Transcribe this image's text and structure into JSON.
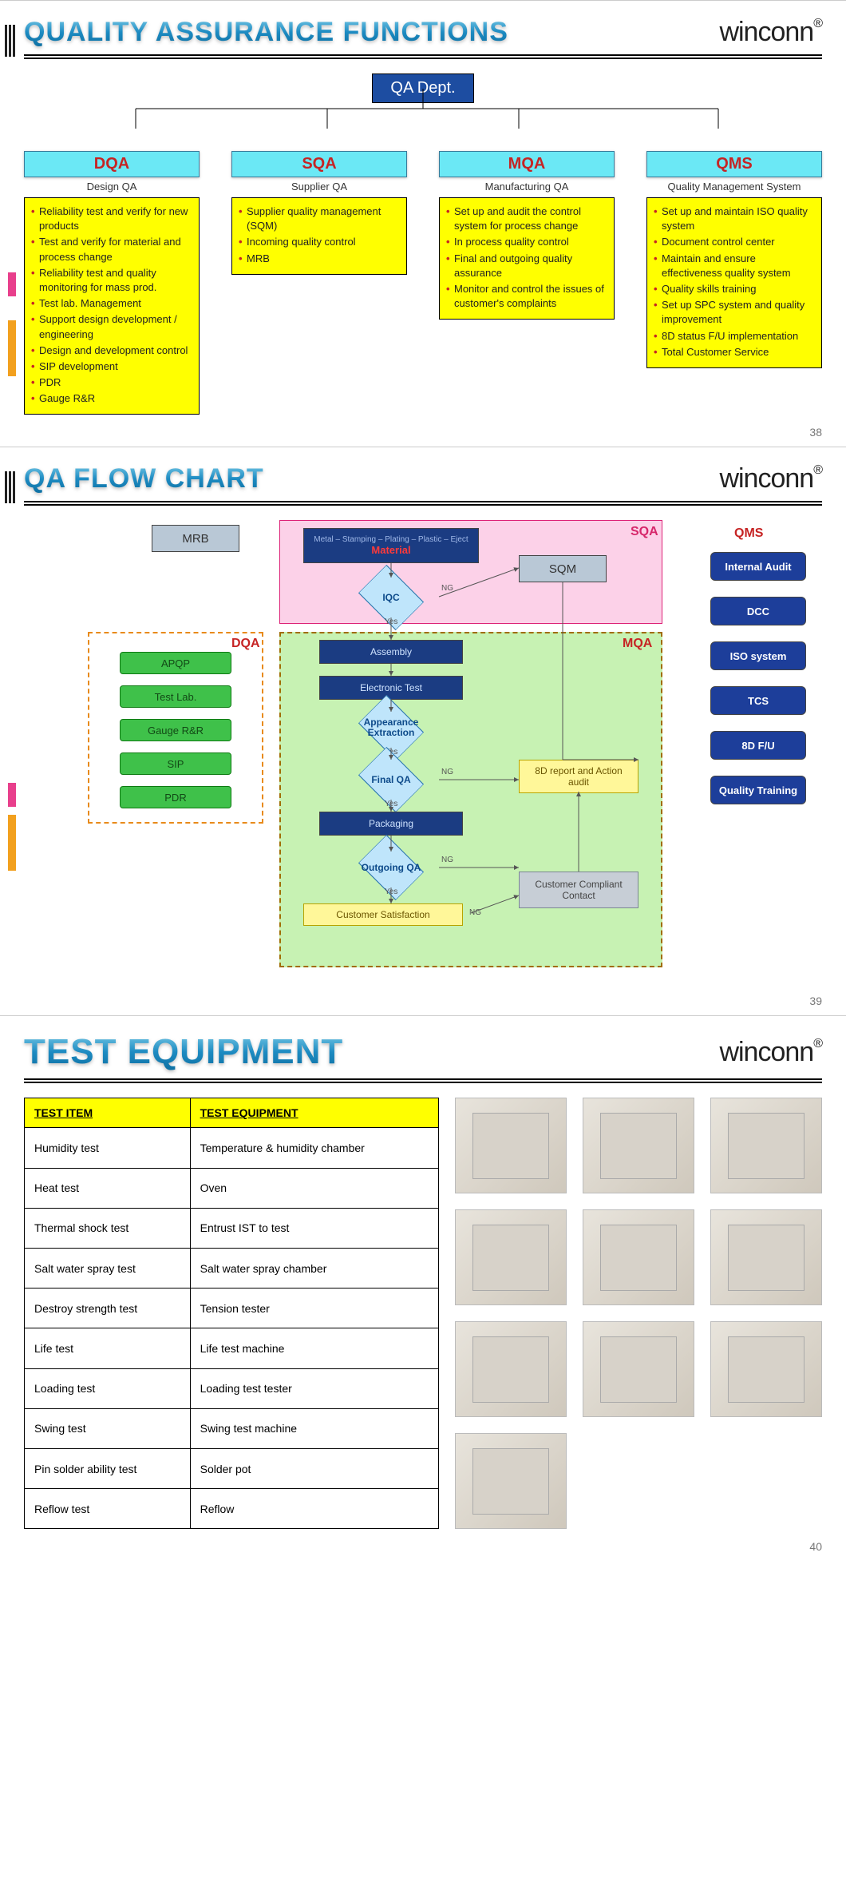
{
  "brand": "winconn",
  "slides": {
    "qa_functions": {
      "title": "QUALITY ASSURANCE FUNCTIONS",
      "page": "38",
      "root": "QA Dept.",
      "colors": {
        "root_bg": "#1d4da1",
        "head_bg": "#6be8f5",
        "head_text": "#c62424",
        "box_bg": "#ffff00",
        "bullet": "#c62424"
      },
      "branches": [
        {
          "code": "DQA",
          "sub": "Design QA",
          "items": [
            "Reliability test and verify for new products",
            "Test and verify for material and process change",
            "Reliability test and quality monitoring for mass prod.",
            "Test lab. Management",
            "Support design development / engineering",
            "Design and development control",
            "SIP development",
            "PDR",
            "Gauge R&R"
          ]
        },
        {
          "code": "SQA",
          "sub": "Supplier QA",
          "items": [
            "Supplier quality management (SQM)",
            "Incoming quality control",
            "MRB"
          ]
        },
        {
          "code": "MQA",
          "sub": "Manufacturing QA",
          "items": [
            "Set up and audit the control system for process change",
            "In process quality control",
            "Final and outgoing quality assurance",
            "Monitor and control the issues of customer's complaints"
          ]
        },
        {
          "code": "QMS",
          "sub": "Quality Management System",
          "items": [
            "Set up and maintain ISO quality system",
            "Document control center",
            "Maintain and ensure effectiveness quality system",
            "Quality skills training",
            "Set up SPC system and quality improvement",
            "8D status F/U implementation",
            "Total Customer Service"
          ]
        }
      ]
    },
    "qa_flow": {
      "title": "QA FLOW CHART",
      "page": "39",
      "regions": {
        "SQA": {
          "color": "#d6266a",
          "bg": "#fcd1e8"
        },
        "MQA": {
          "color": "#c62424",
          "bg": "#c7f2b3"
        },
        "DQA": {
          "color": "#c62424",
          "bg_border": "#e88a1a"
        },
        "QMS": {
          "color": "#c62424"
        }
      },
      "mrb": "MRB",
      "material_head": "Metal – Stamping – Plating – Plastic – Eject",
      "material_word": "Material",
      "sqm": "SQM",
      "iqc": "IQC",
      "assembly": "Assembly",
      "etest": "Electronic Test",
      "appearance": "Appearance Extraction",
      "finalqa": "Final QA",
      "packaging": "Packaging",
      "outgoing": "Outgoing QA",
      "custsat": "Customer Satisfaction",
      "report8d": "8D report and Action audit",
      "complaint": "Customer Compliant Contact",
      "dqa_items": [
        "APQP",
        "Test Lab.",
        "Gauge R&R",
        "SIP",
        "PDR"
      ],
      "qms_items": [
        "Internal Audit",
        "DCC",
        "ISO system",
        "TCS",
        "8D F/U",
        "Quality Training"
      ],
      "yes": "Yes",
      "ng": "NG",
      "colors": {
        "darkblue": "#1b3c82",
        "green": "#3fc14a",
        "navy": "#1d3e9a",
        "diamond": "#bfe5fb",
        "yellow": "#fff799",
        "greybox": "#c7ced6",
        "grey": "#b9c8d6"
      }
    },
    "test_equipment": {
      "title": "TEST EQUIPMENT",
      "page": "40",
      "columns": [
        "TEST ITEM",
        "TEST EQUIPMENT"
      ],
      "rows": [
        [
          "Humidity test",
          "Temperature & humidity chamber"
        ],
        [
          "Heat test",
          "Oven"
        ],
        [
          "Thermal shock test",
          "Entrust IST to test"
        ],
        [
          "Salt water spray test",
          "Salt water spray chamber"
        ],
        [
          "Destroy strength test",
          "Tension tester"
        ],
        [
          "Life test",
          "Life test machine"
        ],
        [
          "Loading test",
          "Loading test tester"
        ],
        [
          "Swing test",
          "Swing test machine"
        ],
        [
          "Pin solder ability test",
          "Solder pot"
        ],
        [
          "Reflow test",
          "Reflow"
        ]
      ],
      "equipment_images": 10
    }
  }
}
